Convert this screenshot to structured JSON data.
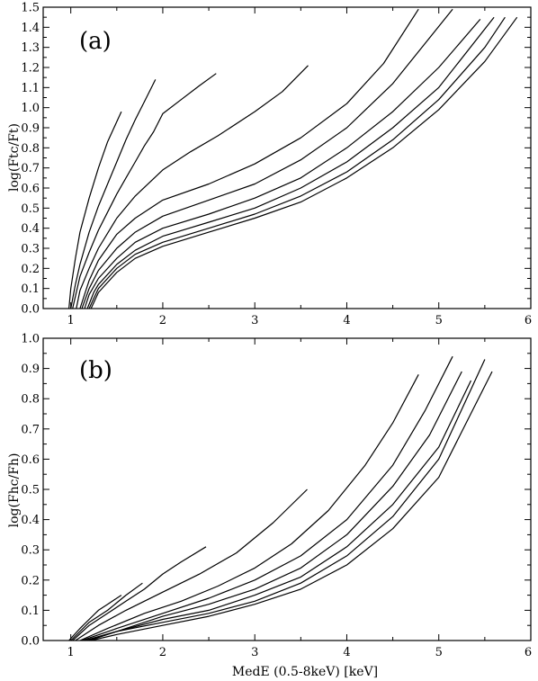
{
  "chart_data": [
    {
      "type": "line",
      "panel_label": "(a)",
      "xlabel": "",
      "ylabel": "log(Ftc/Ft)",
      "xlim": [
        0.7,
        6.0
      ],
      "ylim": [
        0.0,
        1.5
      ],
      "x_ticks": [
        1,
        2,
        3,
        4,
        5,
        6
      ],
      "y_ticks": [
        0.0,
        0.1,
        0.2,
        0.3,
        0.4,
        0.5,
        0.6,
        0.7,
        0.8,
        0.9,
        1.0,
        1.1,
        1.2,
        1.3,
        1.4,
        1.5
      ],
      "y_tick_labels": [
        "0.0",
        "0.1",
        "0.2",
        "0.3",
        "0.4",
        "0.5",
        "0.6",
        "0.7",
        "0.8",
        "0.9",
        "1.0",
        "1.1",
        "1.2",
        "1.3",
        "1.4",
        "1.5"
      ],
      "grid": false,
      "line_color": "#000000",
      "series": [
        {
          "x": [
            0.98,
            1.0,
            1.05,
            1.1,
            1.2,
            1.3,
            1.4,
            1.5,
            1.55
          ],
          "y": [
            0.0,
            0.1,
            0.25,
            0.38,
            0.55,
            0.7,
            0.83,
            0.93,
            0.98
          ]
        },
        {
          "x": [
            1.0,
            1.05,
            1.1,
            1.2,
            1.3,
            1.4,
            1.5,
            1.6,
            1.7,
            1.8,
            1.92
          ],
          "y": [
            0.0,
            0.12,
            0.22,
            0.38,
            0.51,
            0.62,
            0.73,
            0.84,
            0.94,
            1.03,
            1.14
          ]
        },
        {
          "x": [
            1.02,
            1.1,
            1.2,
            1.3,
            1.4,
            1.5,
            1.6,
            1.7,
            1.8,
            1.9,
            2.0,
            2.2,
            2.4,
            2.58
          ],
          "y": [
            0.0,
            0.16,
            0.28,
            0.39,
            0.48,
            0.57,
            0.65,
            0.73,
            0.81,
            0.88,
            0.97,
            1.04,
            1.11,
            1.17
          ]
        },
        {
          "x": [
            1.06,
            1.1,
            1.2,
            1.3,
            1.5,
            1.7,
            2.0,
            2.3,
            2.6,
            3.0,
            3.3,
            3.58
          ],
          "y": [
            0.0,
            0.09,
            0.2,
            0.3,
            0.45,
            0.56,
            0.69,
            0.78,
            0.86,
            0.98,
            1.08,
            1.21
          ]
        },
        {
          "x": [
            1.1,
            1.2,
            1.3,
            1.5,
            1.7,
            2.0,
            2.5,
            3.0,
            3.5,
            4.0,
            4.4,
            4.78
          ],
          "y": [
            0.0,
            0.14,
            0.24,
            0.37,
            0.45,
            0.54,
            0.62,
            0.72,
            0.85,
            1.02,
            1.22,
            1.49
          ]
        },
        {
          "x": [
            1.12,
            1.2,
            1.3,
            1.5,
            1.7,
            2.0,
            2.5,
            3.0,
            3.5,
            4.0,
            4.5,
            5.15
          ],
          "y": [
            0.0,
            0.1,
            0.19,
            0.3,
            0.38,
            0.46,
            0.54,
            0.62,
            0.74,
            0.9,
            1.12,
            1.49
          ]
        },
        {
          "x": [
            1.15,
            1.2,
            1.3,
            1.5,
            1.7,
            2.0,
            2.5,
            3.0,
            3.5,
            4.0,
            4.5,
            5.0,
            5.45
          ],
          "y": [
            0.0,
            0.07,
            0.15,
            0.25,
            0.33,
            0.4,
            0.47,
            0.55,
            0.65,
            0.8,
            0.98,
            1.2,
            1.44
          ]
        },
        {
          "x": [
            1.18,
            1.25,
            1.3,
            1.5,
            1.7,
            2.0,
            2.5,
            3.0,
            3.5,
            4.0,
            4.5,
            5.0,
            5.6
          ],
          "y": [
            0.0,
            0.08,
            0.12,
            0.22,
            0.29,
            0.36,
            0.43,
            0.5,
            0.6,
            0.73,
            0.9,
            1.1,
            1.45
          ]
        },
        {
          "x": [
            1.2,
            1.25,
            1.3,
            1.5,
            1.7,
            2.0,
            2.5,
            3.0,
            3.5,
            4.0,
            4.5,
            5.0,
            5.5,
            5.72
          ],
          "y": [
            0.0,
            0.05,
            0.1,
            0.2,
            0.27,
            0.33,
            0.4,
            0.47,
            0.56,
            0.68,
            0.84,
            1.04,
            1.3,
            1.45
          ]
        },
        {
          "x": [
            1.22,
            1.3,
            1.5,
            1.7,
            2.0,
            2.5,
            3.0,
            3.5,
            4.0,
            4.5,
            5.0,
            5.5,
            5.85
          ],
          "y": [
            0.0,
            0.08,
            0.18,
            0.25,
            0.31,
            0.38,
            0.45,
            0.53,
            0.65,
            0.8,
            0.99,
            1.23,
            1.45
          ]
        }
      ]
    },
    {
      "type": "line",
      "panel_label": "(b)",
      "xlabel": "MedE (0.5-8keV) [keV]",
      "ylabel": "log(Fhc/Fh)",
      "xlim": [
        0.7,
        6.0
      ],
      "ylim": [
        0.0,
        1.0
      ],
      "x_ticks": [
        1,
        2,
        3,
        4,
        5,
        6
      ],
      "y_ticks": [
        0.0,
        0.1,
        0.2,
        0.3,
        0.4,
        0.5,
        0.6,
        0.7,
        0.8,
        0.9,
        1.0
      ],
      "y_tick_labels": [
        "0.0",
        "0.1",
        "0.2",
        "0.3",
        "0.4",
        "0.5",
        "0.6",
        "0.7",
        "0.8",
        "0.9",
        "1.0"
      ],
      "grid": false,
      "line_color": "#000000",
      "series": [
        {
          "x": [
            0.98,
            1.1,
            1.2,
            1.3,
            1.4,
            1.55
          ],
          "y": [
            0.0,
            0.04,
            0.07,
            0.1,
            0.12,
            0.15
          ]
        },
        {
          "x": [
            1.0,
            1.2,
            1.4,
            1.6,
            1.78
          ],
          "y": [
            0.0,
            0.06,
            0.1,
            0.15,
            0.19
          ]
        },
        {
          "x": [
            1.02,
            1.2,
            1.4,
            1.6,
            1.8,
            2.0,
            2.2,
            2.47
          ],
          "y": [
            0.0,
            0.05,
            0.09,
            0.13,
            0.17,
            0.22,
            0.26,
            0.31
          ]
        },
        {
          "x": [
            1.05,
            1.3,
            1.6,
            2.0,
            2.4,
            2.8,
            3.2,
            3.57
          ],
          "y": [
            0.0,
            0.05,
            0.1,
            0.16,
            0.22,
            0.29,
            0.39,
            0.5
          ]
        },
        {
          "x": [
            1.1,
            1.4,
            1.8,
            2.2,
            2.6,
            3.0,
            3.4,
            3.8,
            4.2,
            4.5,
            4.78
          ],
          "y": [
            0.0,
            0.04,
            0.09,
            0.13,
            0.18,
            0.24,
            0.32,
            0.43,
            0.58,
            0.72,
            0.88
          ]
        },
        {
          "x": [
            1.12,
            1.5,
            2.0,
            2.5,
            3.0,
            3.5,
            4.0,
            4.5,
            4.85,
            5.15
          ],
          "y": [
            0.0,
            0.04,
            0.09,
            0.14,
            0.2,
            0.28,
            0.4,
            0.58,
            0.76,
            0.94
          ]
        },
        {
          "x": [
            1.15,
            1.5,
            2.0,
            2.5,
            3.0,
            3.5,
            4.0,
            4.5,
            4.9,
            5.25
          ],
          "y": [
            0.0,
            0.03,
            0.08,
            0.12,
            0.17,
            0.24,
            0.35,
            0.51,
            0.68,
            0.89
          ]
        },
        {
          "x": [
            1.18,
            1.5,
            2.0,
            2.5,
            3.0,
            3.5,
            4.0,
            4.5,
            5.0,
            5.35
          ],
          "y": [
            0.0,
            0.03,
            0.07,
            0.1,
            0.15,
            0.21,
            0.31,
            0.45,
            0.64,
            0.86
          ]
        },
        {
          "x": [
            1.2,
            1.5,
            2.0,
            2.5,
            3.0,
            3.5,
            4.0,
            4.5,
            5.0,
            5.5
          ],
          "y": [
            0.0,
            0.03,
            0.06,
            0.09,
            0.13,
            0.19,
            0.28,
            0.41,
            0.6,
            0.93
          ]
        },
        {
          "x": [
            1.22,
            1.5,
            2.0,
            2.5,
            3.0,
            3.5,
            4.0,
            4.5,
            5.0,
            5.58
          ],
          "y": [
            0.0,
            0.02,
            0.05,
            0.08,
            0.12,
            0.17,
            0.25,
            0.37,
            0.54,
            0.89
          ]
        }
      ]
    }
  ]
}
